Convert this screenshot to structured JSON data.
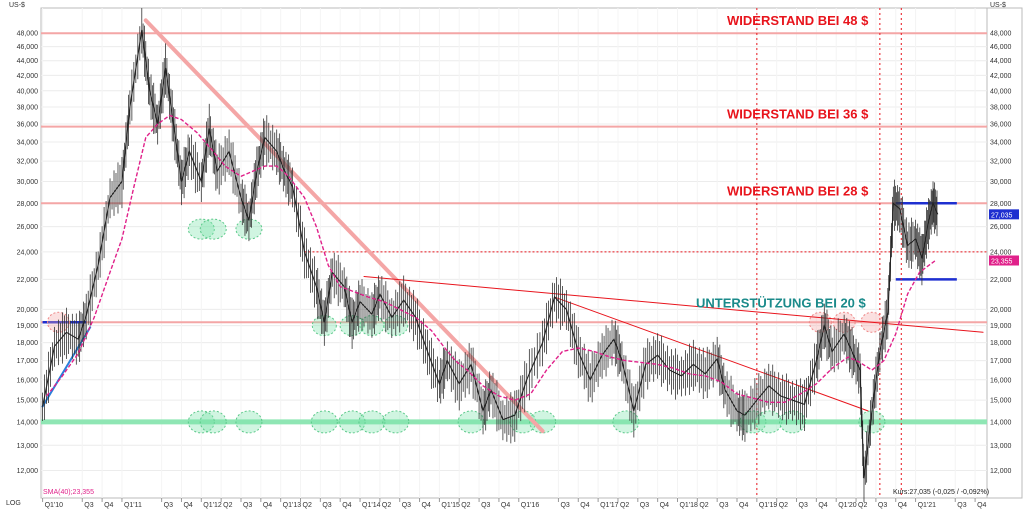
{
  "chart_data": {
    "type": "line",
    "currency_label": "US-$",
    "scale_label": "LOG",
    "scale": "log",
    "ylim": [
      11000,
      52000
    ],
    "y_ticks": [
      12000,
      13000,
      14000,
      15000,
      16000,
      17000,
      18000,
      19000,
      20000,
      22000,
      24000,
      26000,
      28000,
      30000,
      32000,
      34000,
      36000,
      38000,
      40000,
      42000,
      44000,
      46000,
      48000
    ],
    "y_tick_labels": [
      "12,000",
      "13,000",
      "14,000",
      "15,000",
      "16,000",
      "17,000",
      "18,000",
      "19,000",
      "20,000",
      "22,000",
      "24,000",
      "26,000",
      "28,000",
      "30,000",
      "32,000",
      "34,000",
      "36,000",
      "38,000",
      "40,000",
      "42,000",
      "44,000",
      "46,000",
      "48,000"
    ],
    "x_ticks": [
      "Q1'10",
      "Q3",
      "Q4",
      "Q1'11",
      "Q3",
      "Q4",
      "Q1'12",
      "Q2",
      "Q3",
      "Q4",
      "Q1'13",
      "Q2",
      "Q3",
      "Q4",
      "Q1'14",
      "Q2",
      "Q3",
      "Q4",
      "Q1'15",
      "Q2",
      "Q3",
      "Q4",
      "Q1'16",
      "Q3",
      "Q4",
      "Q1'17",
      "Q2",
      "Q3",
      "Q4",
      "Q1'18",
      "Q2",
      "Q3",
      "Q4",
      "Q1'19",
      "Q2",
      "Q3",
      "Q4",
      "Q1'20",
      "Q2",
      "Q3",
      "Q4",
      "Q1'21",
      "Q3",
      "Q4"
    ],
    "x_tick_t": [
      2010.0,
      2010.5,
      2010.75,
      2011.0,
      2011.5,
      2011.75,
      2012.0,
      2012.25,
      2012.5,
      2012.75,
      2013.0,
      2013.25,
      2013.5,
      2013.75,
      2014.0,
      2014.25,
      2014.5,
      2014.75,
      2015.0,
      2015.25,
      2015.5,
      2015.75,
      2016.0,
      2016.5,
      2016.75,
      2017.0,
      2017.25,
      2017.5,
      2017.75,
      2018.0,
      2018.25,
      2018.5,
      2018.75,
      2019.0,
      2019.25,
      2019.5,
      2019.75,
      2020.0,
      2020.25,
      2020.5,
      2020.75,
      2021.0,
      2021.5,
      2021.75
    ],
    "price_series": {
      "name": "Kurs",
      "points": [
        [
          2010.0,
          14700
        ],
        [
          2010.15,
          17800
        ],
        [
          2010.3,
          18600
        ],
        [
          2010.45,
          18200
        ],
        [
          2010.55,
          19600
        ],
        [
          2010.7,
          23000
        ],
        [
          2010.85,
          28500
        ],
        [
          2011.0,
          30000
        ],
        [
          2011.1,
          38000
        ],
        [
          2011.25,
          48500
        ],
        [
          2011.35,
          40000
        ],
        [
          2011.45,
          36000
        ],
        [
          2011.55,
          43000
        ],
        [
          2011.65,
          36000
        ],
        [
          2011.75,
          30000
        ],
        [
          2011.85,
          33000
        ],
        [
          2012.0,
          30000
        ],
        [
          2012.1,
          35500
        ],
        [
          2012.2,
          31000
        ],
        [
          2012.35,
          33000
        ],
        [
          2012.5,
          28500
        ],
        [
          2012.6,
          26500
        ],
        [
          2012.7,
          31000
        ],
        [
          2012.8,
          34500
        ],
        [
          2012.95,
          33000
        ],
        [
          2013.05,
          31000
        ],
        [
          2013.15,
          29500
        ],
        [
          2013.3,
          24000
        ],
        [
          2013.45,
          21500
        ],
        [
          2013.55,
          19200
        ],
        [
          2013.65,
          22500
        ],
        [
          2013.8,
          21500
        ],
        [
          2013.9,
          19200
        ],
        [
          2014.0,
          20500
        ],
        [
          2014.15,
          19700
        ],
        [
          2014.25,
          21000
        ],
        [
          2014.4,
          19500
        ],
        [
          2014.55,
          20600
        ],
        [
          2014.7,
          19500
        ],
        [
          2014.85,
          17500
        ],
        [
          2015.0,
          15800
        ],
        [
          2015.1,
          17000
        ],
        [
          2015.25,
          15800
        ],
        [
          2015.4,
          16800
        ],
        [
          2015.55,
          14500
        ],
        [
          2015.65,
          15500
        ],
        [
          2015.8,
          14100
        ],
        [
          2015.95,
          14300
        ],
        [
          2016.1,
          16000
        ],
        [
          2016.3,
          18000
        ],
        [
          2016.45,
          20800
        ],
        [
          2016.6,
          20000
        ],
        [
          2016.75,
          17500
        ],
        [
          2016.9,
          16000
        ],
        [
          2017.05,
          17300
        ],
        [
          2017.2,
          18200
        ],
        [
          2017.3,
          17000
        ],
        [
          2017.45,
          14500
        ],
        [
          2017.6,
          16800
        ],
        [
          2017.75,
          17300
        ],
        [
          2017.9,
          16500
        ],
        [
          2018.05,
          16200
        ],
        [
          2018.2,
          16800
        ],
        [
          2018.35,
          16300
        ],
        [
          2018.5,
          17100
        ],
        [
          2018.6,
          15500
        ],
        [
          2018.75,
          14500
        ],
        [
          2018.85,
          14300
        ],
        [
          2019.0,
          15000
        ],
        [
          2019.15,
          15700
        ],
        [
          2019.3,
          15200
        ],
        [
          2019.45,
          15000
        ],
        [
          2019.6,
          14800
        ],
        [
          2019.75,
          17000
        ],
        [
          2019.85,
          19000
        ],
        [
          2019.95,
          17500
        ],
        [
          2020.1,
          18500
        ],
        [
          2020.2,
          17500
        ],
        [
          2020.3,
          16500
        ],
        [
          2020.35,
          11700
        ],
        [
          2020.45,
          14500
        ],
        [
          2020.55,
          17500
        ],
        [
          2020.65,
          19800
        ],
        [
          2020.72,
          28000
        ],
        [
          2020.8,
          27500
        ],
        [
          2020.9,
          24500
        ],
        [
          2021.0,
          25000
        ],
        [
          2021.08,
          23500
        ],
        [
          2021.15,
          26000
        ],
        [
          2021.22,
          28000
        ],
        [
          2021.28,
          27035
        ]
      ]
    },
    "sma_series": {
      "name": "SMA(40)",
      "points": [
        [
          2010.05,
          15200
        ],
        [
          2010.25,
          16200
        ],
        [
          2010.45,
          17400
        ],
        [
          2010.65,
          19500
        ],
        [
          2010.85,
          22500
        ],
        [
          2011.0,
          25000
        ],
        [
          2011.15,
          29500
        ],
        [
          2011.3,
          34500
        ],
        [
          2011.45,
          36000
        ],
        [
          2011.6,
          37000
        ],
        [
          2011.75,
          36500
        ],
        [
          2011.95,
          35000
        ],
        [
          2012.15,
          33000
        ],
        [
          2012.3,
          31500
        ],
        [
          2012.5,
          30500
        ],
        [
          2012.65,
          31000
        ],
        [
          2012.8,
          31500
        ],
        [
          2012.95,
          31500
        ],
        [
          2013.1,
          30500
        ],
        [
          2013.3,
          28500
        ],
        [
          2013.45,
          26000
        ],
        [
          2013.6,
          23000
        ],
        [
          2013.75,
          21500
        ],
        [
          2013.9,
          21200
        ],
        [
          2014.1,
          20800
        ],
        [
          2014.3,
          20500
        ],
        [
          2014.5,
          20000
        ],
        [
          2014.7,
          19500
        ],
        [
          2014.9,
          18700
        ],
        [
          2015.05,
          17800
        ],
        [
          2015.2,
          17000
        ],
        [
          2015.35,
          16500
        ],
        [
          2015.55,
          15700
        ],
        [
          2015.75,
          15200
        ],
        [
          2015.95,
          15000
        ],
        [
          2016.15,
          15300
        ],
        [
          2016.35,
          16500
        ],
        [
          2016.55,
          17500
        ],
        [
          2016.75,
          17700
        ],
        [
          2016.95,
          17500
        ],
        [
          2017.15,
          17200
        ],
        [
          2017.35,
          17000
        ],
        [
          2017.55,
          16900
        ],
        [
          2017.75,
          16800
        ],
        [
          2017.95,
          16600
        ],
        [
          2018.15,
          16300
        ],
        [
          2018.35,
          16200
        ],
        [
          2018.55,
          15900
        ],
        [
          2018.75,
          15300
        ],
        [
          2018.95,
          15100
        ],
        [
          2019.15,
          14900
        ],
        [
          2019.35,
          14900
        ],
        [
          2019.55,
          15300
        ],
        [
          2019.75,
          15800
        ],
        [
          2019.95,
          16600
        ],
        [
          2020.15,
          17200
        ],
        [
          2020.3,
          16900
        ],
        [
          2020.45,
          16500
        ],
        [
          2020.6,
          17000
        ],
        [
          2020.75,
          18500
        ],
        [
          2020.9,
          21000
        ],
        [
          2021.05,
          22500
        ],
        [
          2021.25,
          23355
        ]
      ]
    },
    "horizontal_levels": [
      {
        "name": "resistance-48",
        "value": 48000,
        "color": "#f4a6a6",
        "label": "WIDERSTAND BEI 48 $"
      },
      {
        "name": "resistance-36",
        "value": 35700,
        "color": "#f4a6a6",
        "label": "WIDERSTAND BEI 36 $"
      },
      {
        "name": "resistance-28",
        "value": 28000,
        "color": "#f4a6a6",
        "label": "WIDERSTAND BEI 28 $"
      },
      {
        "name": "support-20",
        "value": 19200,
        "color": "#f4a6a6",
        "label": "UNTERSTÜTZUNG BEI 20 $"
      },
      {
        "name": "support-14",
        "value": 14000,
        "color": "#8fe6b4",
        "label": ""
      }
    ],
    "dotted_level": {
      "value": 24000,
      "color": "#e8141c"
    },
    "blue_levels": [
      {
        "value": 28000,
        "t_start": 2020.75,
        "t_end": 2021.52
      },
      {
        "value": 22000,
        "t_start": 2020.75,
        "t_end": 2021.52
      },
      {
        "value": 19200,
        "t_start": 2010.0,
        "t_end": 2010.55
      }
    ],
    "trendlines": [
      {
        "name": "downtrend-main",
        "color": "#f4a6a6",
        "width": 4,
        "from": [
          2011.3,
          50000
        ],
        "to": [
          2016.3,
          13600
        ]
      },
      {
        "name": "downtrend-red-1",
        "color": "#e8141c",
        "width": 1,
        "from": [
          2014.05,
          22200
        ],
        "to": [
          2021.85,
          18600
        ]
      },
      {
        "name": "downtrend-red-2",
        "color": "#e8141c",
        "width": 1,
        "from": [
          2016.45,
          20800
        ],
        "to": [
          2020.4,
          14500
        ]
      },
      {
        "name": "uptrend-blue",
        "color": "#2a7fdb",
        "width": 2,
        "from": [
          2010.0,
          14700
        ],
        "to": [
          2010.6,
          18900
        ]
      }
    ],
    "green_circles": [
      2012.0,
      2012.15,
      2012.6,
      2013.55,
      2013.9,
      2014.15,
      2014.45,
      2015.4,
      2016.05,
      2016.3,
      2017.35,
      2018.95,
      2019.15,
      2019.45,
      2020.45
    ],
    "pink_circles": [
      [
        2010.2,
        19200
      ],
      [
        2019.8,
        19200
      ],
      [
        2020.1,
        19200
      ],
      [
        2020.45,
        19200
      ]
    ],
    "vertical_dotted": [
      2019.0,
      2020.55,
      2020.82
    ],
    "current_price_label": "27,035",
    "sma_label": "23,355",
    "sma_legend": "SMA(40);23,355",
    "footer_text": "Kurs:27,035 (-0,025 / -0,092%)"
  }
}
